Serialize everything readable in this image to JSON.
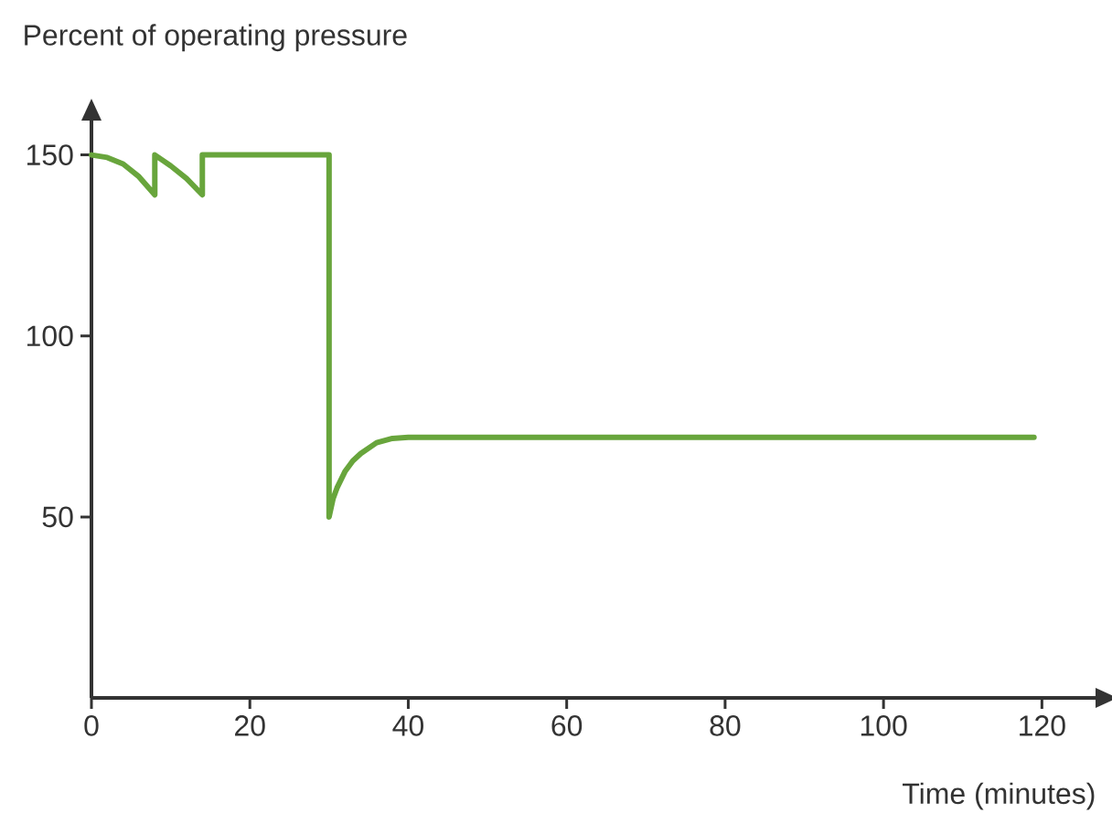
{
  "chart_data": {
    "type": "line",
    "xlabel": "Time (minutes)",
    "ylabel": "Percent of operating pressure",
    "xlim": [
      0,
      127
    ],
    "ylim": [
      0,
      160
    ],
    "xticks": [
      0,
      20,
      40,
      60,
      80,
      100,
      120
    ],
    "yticks": [
      50,
      100,
      150
    ],
    "series": [
      {
        "color": "#68a53c",
        "x": [
          0,
          2,
          4,
          6,
          8,
          8,
          10,
          12,
          14,
          14,
          30,
          30,
          30.5,
          31,
          32,
          33,
          34,
          36,
          38,
          40,
          119
        ],
        "values": [
          150,
          149.3,
          147.5,
          144,
          139,
          150,
          147,
          143.5,
          139,
          150,
          150,
          50,
          55,
          58,
          62.5,
          65.5,
          67.5,
          70.5,
          71.7,
          72,
          72
        ]
      }
    ]
  }
}
